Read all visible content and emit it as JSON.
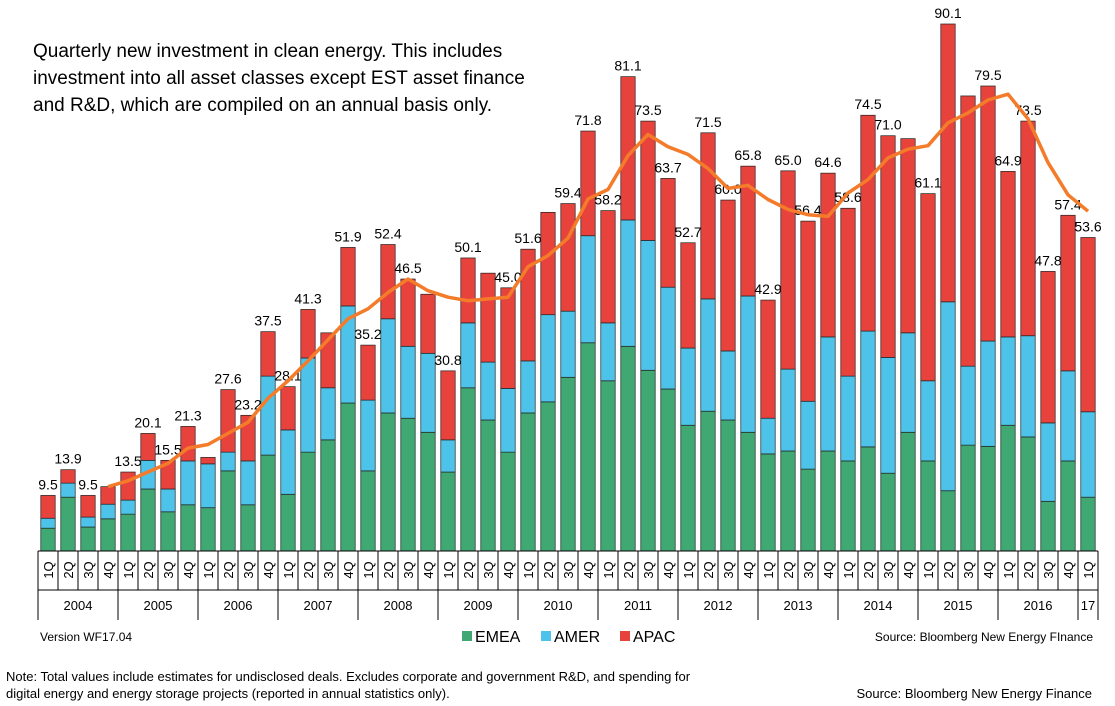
{
  "chart_data": {
    "type": "stacked_bar",
    "title": [
      "Quarterly new investment in clean energy. This includes",
      "investment into all asset classes except EST asset finance",
      "and R&D, which are compiled on an annual basis only."
    ],
    "version": "Version WF17.04",
    "source": "Source: Bloomberg New Energy FInance",
    "note": [
      "Note: Total values include estimates for undisclosed deals. Excludes corporate and government R&D, and spending for",
      "digital energy and energy storage projects (reported in annual statistics only)."
    ],
    "footer_source": "Source: Bloomberg New Energy Finance",
    "categories": [
      "1Q",
      "2Q",
      "3Q",
      "4Q",
      "1Q",
      "2Q",
      "3Q",
      "4Q",
      "1Q",
      "2Q",
      "3Q",
      "4Q",
      "1Q",
      "2Q",
      "3Q",
      "4Q",
      "1Q",
      "2Q",
      "3Q",
      "4Q",
      "1Q",
      "2Q",
      "3Q",
      "4Q",
      "1Q",
      "2Q",
      "3Q",
      "4Q",
      "1Q",
      "2Q",
      "3Q",
      "4Q",
      "1Q",
      "2Q",
      "3Q",
      "4Q",
      "1Q",
      "2Q",
      "3Q",
      "4Q",
      "1Q",
      "2Q",
      "3Q",
      "4Q",
      "1Q",
      "2Q",
      "3Q",
      "4Q",
      "1Q",
      "2Q",
      "3Q",
      "4Q",
      "1Q"
    ],
    "groups": [
      "2004",
      "2005",
      "2006",
      "2007",
      "2008",
      "2009",
      "2010",
      "2011",
      "2012",
      "2013",
      "2014",
      "2015",
      "2016",
      "17"
    ],
    "series": [
      {
        "name": "EMEA",
        "color": "#3fa873",
        "values": [
          3.9,
          9.2,
          4.1,
          5.5,
          6.3,
          10.6,
          6.7,
          7.9,
          7.4,
          13.7,
          7.9,
          16.4,
          9.7,
          16.9,
          19.0,
          25.3,
          13.7,
          23.6,
          22.7,
          20.3,
          13.5,
          27.9,
          22.4,
          16.9,
          23.6,
          25.5,
          29.7,
          35.6,
          29.1,
          35.0,
          30.9,
          27.7,
          21.5,
          23.9,
          22.4,
          20.3,
          16.6,
          17.1,
          14.0,
          17.1,
          15.4,
          17.8,
          13.3,
          20.3,
          15.4,
          10.3,
          18.1,
          17.9,
          21.5,
          19.5,
          8.5,
          15.4,
          9.2
        ]
      },
      {
        "name": "AMER",
        "color": "#4dc3ea",
        "values": [
          1.7,
          2.4,
          1.7,
          2.5,
          2.4,
          4.9,
          3.9,
          7.5,
          7.5,
          3.2,
          7.5,
          13.5,
          11.0,
          16.1,
          8.9,
          16.6,
          12.1,
          16.1,
          12.3,
          13.5,
          5.5,
          11.1,
          9.9,
          10.9,
          8.9,
          14.9,
          11.3,
          18.3,
          9.9,
          21.6,
          22.2,
          17.4,
          13.2,
          19.2,
          11.8,
          23.3,
          6.1,
          14.0,
          11.6,
          19.5,
          14.5,
          19.8,
          19.8,
          17.0,
          13.7,
          32.3,
          13.5,
          18.0,
          15.1,
          17.3,
          13.4,
          15.4,
          14.6
        ]
      },
      {
        "name": "APAC",
        "color": "#e8423d",
        "values": [
          3.9,
          2.3,
          3.7,
          3.0,
          4.8,
          4.6,
          4.9,
          5.9,
          1.1,
          10.7,
          7.8,
          7.6,
          7.4,
          8.3,
          9.4,
          10.0,
          9.4,
          12.7,
          11.5,
          10.1,
          11.8,
          11.1,
          15.2,
          17.2,
          19.1,
          17.5,
          18.4,
          17.9,
          19.2,
          24.5,
          20.4,
          18.6,
          18.0,
          28.4,
          25.8,
          22.2,
          20.2,
          33.9,
          30.8,
          28.0,
          28.7,
          36.9,
          37.9,
          33.2,
          32.0,
          47.5,
          46.2,
          43.6,
          28.3,
          36.7,
          25.9,
          26.6,
          29.8
        ]
      }
    ],
    "total_labels": [
      "9.5",
      "13.9",
      "9.5",
      null,
      "13.5",
      "20.1",
      "15.5",
      "21.3",
      null,
      "27.6",
      "23.2",
      "37.5",
      "28.1",
      "41.3",
      null,
      "51.9",
      "35.2",
      "52.4",
      "46.5",
      null,
      "30.8",
      "50.1",
      null,
      "45.0",
      "51.6",
      null,
      "59.4",
      "71.8",
      "58.2",
      "81.1",
      "73.5",
      "63.7",
      "52.7",
      "71.5",
      "60.0",
      "65.8",
      "42.9",
      "65.0",
      "56.4",
      "64.6",
      "58.6",
      "74.5",
      "71.0",
      null,
      "61.1",
      "90.1",
      null,
      "79.5",
      "64.9",
      "73.5",
      "47.8",
      "57.4",
      "53.6"
    ],
    "trend": {
      "color": "#f47b2a",
      "values": [
        null,
        null,
        null,
        11.0,
        12.0,
        13.5,
        15.0,
        17.6,
        18.2,
        20.1,
        22.0,
        26.1,
        29.1,
        32.5,
        36.1,
        39.7,
        41.4,
        44.2,
        46.5,
        44.5,
        43.4,
        42.8,
        43.1,
        43.4,
        48.6,
        50.5,
        53.5,
        60.2,
        61.8,
        67.6,
        71.2,
        69.1,
        67.8,
        65.4,
        62.0,
        62.5,
        60.1,
        58.4,
        57.5,
        57.2,
        61.2,
        63.5,
        67.2,
        68.7,
        69.3,
        73.2,
        74.9,
        77.1,
        78.1,
        73.9,
        66.4,
        60.9,
        58.1
      ]
    }
  }
}
